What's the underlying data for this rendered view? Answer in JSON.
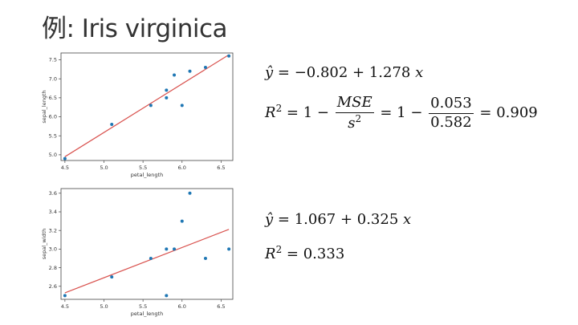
{
  "title": "例: Iris virginica",
  "chart_data": [
    {
      "type": "scatter",
      "xlabel": "petal_length",
      "ylabel": "sepal_length",
      "xlim": [
        4.45,
        6.65
      ],
      "ylim": [
        4.85,
        7.68
      ],
      "xticks": [
        4.5,
        5.0,
        5.5,
        6.0,
        6.5
      ],
      "xtick_labels": [
        "4.5",
        "5.0",
        "5.5",
        "6.0",
        "6.5"
      ],
      "yticks": [
        5.0,
        5.5,
        6.0,
        6.5,
        7.0,
        7.5
      ],
      "ytick_labels": [
        "5.0",
        "5.5",
        "6.0",
        "6.5",
        "7.0",
        "7.5"
      ],
      "x": [
        4.5,
        5.1,
        5.6,
        5.8,
        5.8,
        5.9,
        6.0,
        6.1,
        6.3,
        6.6
      ],
      "y": [
        4.9,
        5.8,
        6.3,
        6.7,
        6.5,
        7.1,
        6.3,
        7.2,
        7.3,
        7.6
      ],
      "fit": {
        "intercept": -0.802,
        "slope": 1.278
      },
      "point_color": "#1f77b4",
      "line_color": "#d9534f"
    },
    {
      "type": "scatter",
      "xlabel": "petal_length",
      "ylabel": "sepal_width",
      "xlim": [
        4.45,
        6.65
      ],
      "ylim": [
        2.46,
        3.65
      ],
      "xticks": [
        4.5,
        5.0,
        5.5,
        6.0,
        6.5
      ],
      "xtick_labels": [
        "4.5",
        "5.0",
        "5.5",
        "6.0",
        "6.5"
      ],
      "yticks": [
        2.6,
        2.8,
        3.0,
        3.2,
        3.4,
        3.6
      ],
      "ytick_labels": [
        "2.6",
        "2.8",
        "3.0",
        "3.2",
        "3.4",
        "3.6"
      ],
      "x": [
        4.5,
        5.1,
        5.6,
        5.8,
        5.8,
        5.9,
        6.0,
        6.1,
        6.3,
        6.6
      ],
      "y": [
        2.5,
        2.7,
        2.9,
        3.0,
        2.5,
        3.0,
        3.3,
        3.6,
        2.9,
        3.0
      ],
      "fit": {
        "intercept": 1.067,
        "slope": 0.325
      },
      "point_color": "#1f77b4",
      "line_color": "#d9534f"
    }
  ],
  "equations": {
    "eq1_line": "−0.802 + 1.278",
    "eq1_mse": "MSE",
    "eq1_s": "s",
    "eq1_num": "0.053",
    "eq1_den": "0.582",
    "eq1_r2": "0.909",
    "eq2_line": "1.067 + 0.325",
    "eq2_r2": "0.333"
  }
}
